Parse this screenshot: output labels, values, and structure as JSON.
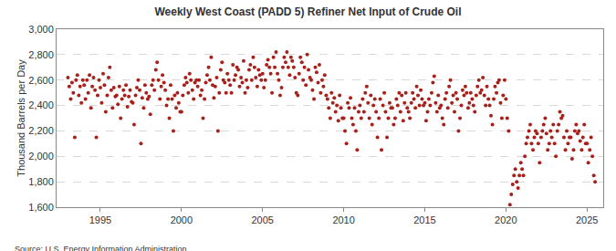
{
  "chart_data": {
    "type": "scatter",
    "title": "Weekly West Coast (PADD 5) Refiner Net Input of Crude Oil",
    "y_label": "Thousand Barrels per Day",
    "source": "Source: U.S. Energy Information Administration",
    "color": "#a8201a",
    "marker": "circle",
    "grid": true,
    "xlim": [
      1992.3,
      2026.0
    ],
    "xticks": [
      1995,
      2000,
      2005,
      2010,
      2015,
      2020,
      2025
    ],
    "ylim": [
      1600,
      3000
    ],
    "yticks": [
      {
        "value": 1600,
        "label": "1,600"
      },
      {
        "value": 1800,
        "label": "1,800"
      },
      {
        "value": 2000,
        "label": "2,000"
      },
      {
        "value": 2200,
        "label": "2,200"
      },
      {
        "value": 2400,
        "label": "2,400"
      },
      {
        "value": 2600,
        "label": "2,600"
      },
      {
        "value": 2800,
        "label": "2,800"
      },
      {
        "value": 3000,
        "label": "3,000"
      }
    ],
    "x": [
      1993.0,
      1993.08,
      1993.17,
      1993.25,
      1993.33,
      1993.42,
      1993.5,
      1993.58,
      1993.67,
      1993.75,
      1993.83,
      1993.92,
      1994.0,
      1994.08,
      1994.17,
      1994.25,
      1994.33,
      1994.42,
      1994.5,
      1994.58,
      1994.67,
      1994.75,
      1994.83,
      1994.92,
      1995.0,
      1995.08,
      1995.17,
      1995.25,
      1995.33,
      1995.42,
      1995.5,
      1995.58,
      1995.67,
      1995.75,
      1995.83,
      1995.92,
      1996.0,
      1996.08,
      1996.17,
      1996.25,
      1996.33,
      1996.42,
      1996.5,
      1996.58,
      1996.67,
      1996.75,
      1996.83,
      1996.92,
      1997.0,
      1997.08,
      1997.17,
      1997.25,
      1997.33,
      1997.42,
      1997.5,
      1997.58,
      1997.67,
      1997.75,
      1997.83,
      1997.92,
      1998.0,
      1998.08,
      1998.17,
      1998.25,
      1998.33,
      1998.42,
      1998.5,
      1998.58,
      1998.67,
      1998.75,
      1998.83,
      1998.92,
      1999.0,
      1999.08,
      1999.17,
      1999.25,
      1999.33,
      1999.42,
      1999.5,
      1999.58,
      1999.67,
      1999.75,
      1999.83,
      1999.92,
      2000.0,
      2000.08,
      2000.17,
      2000.25,
      2000.33,
      2000.42,
      2000.5,
      2000.58,
      2000.67,
      2000.75,
      2000.83,
      2000.92,
      2001.0,
      2001.08,
      2001.17,
      2001.25,
      2001.33,
      2001.42,
      2001.5,
      2001.58,
      2001.67,
      2001.75,
      2001.83,
      2001.92,
      2002.0,
      2002.08,
      2002.17,
      2002.25,
      2002.33,
      2002.42,
      2002.5,
      2002.58,
      2002.67,
      2002.75,
      2002.83,
      2002.92,
      2003.0,
      2003.08,
      2003.17,
      2003.25,
      2003.33,
      2003.42,
      2003.5,
      2003.58,
      2003.67,
      2003.75,
      2003.83,
      2003.92,
      2004.0,
      2004.08,
      2004.17,
      2004.25,
      2004.33,
      2004.42,
      2004.5,
      2004.58,
      2004.67,
      2004.75,
      2004.83,
      2004.92,
      2005.0,
      2005.08,
      2005.17,
      2005.25,
      2005.33,
      2005.42,
      2005.5,
      2005.58,
      2005.67,
      2005.75,
      2005.83,
      2005.92,
      2006.0,
      2006.08,
      2006.17,
      2006.25,
      2006.33,
      2006.42,
      2006.5,
      2006.58,
      2006.67,
      2006.75,
      2006.83,
      2006.92,
      2007.0,
      2007.08,
      2007.17,
      2007.25,
      2007.33,
      2007.42,
      2007.5,
      2007.58,
      2007.67,
      2007.75,
      2007.83,
      2007.92,
      2008.0,
      2008.08,
      2008.17,
      2008.25,
      2008.33,
      2008.42,
      2008.5,
      2008.58,
      2008.67,
      2008.75,
      2008.83,
      2008.92,
      2009.0,
      2009.08,
      2009.17,
      2009.25,
      2009.33,
      2009.42,
      2009.5,
      2009.58,
      2009.67,
      2009.75,
      2009.83,
      2009.92,
      2010.0,
      2010.08,
      2010.17,
      2010.25,
      2010.33,
      2010.42,
      2010.5,
      2010.58,
      2010.67,
      2010.75,
      2010.83,
      2010.92,
      2011.0,
      2011.08,
      2011.17,
      2011.25,
      2011.33,
      2011.42,
      2011.5,
      2011.58,
      2011.67,
      2011.75,
      2011.83,
      2011.92,
      2012.0,
      2012.08,
      2012.17,
      2012.25,
      2012.33,
      2012.42,
      2012.5,
      2012.58,
      2012.67,
      2012.75,
      2012.83,
      2012.92,
      2013.0,
      2013.08,
      2013.17,
      2013.25,
      2013.33,
      2013.42,
      2013.5,
      2013.58,
      2013.67,
      2013.75,
      2013.83,
      2013.92,
      2014.0,
      2014.08,
      2014.17,
      2014.25,
      2014.33,
      2014.42,
      2014.5,
      2014.58,
      2014.67,
      2014.75,
      2014.83,
      2014.92,
      2015.0,
      2015.08,
      2015.17,
      2015.25,
      2015.33,
      2015.42,
      2015.5,
      2015.58,
      2015.67,
      2015.75,
      2015.83,
      2015.92,
      2016.0,
      2016.08,
      2016.17,
      2016.25,
      2016.33,
      2016.42,
      2016.5,
      2016.58,
      2016.67,
      2016.75,
      2016.83,
      2016.92,
      2017.0,
      2017.08,
      2017.17,
      2017.25,
      2017.33,
      2017.42,
      2017.5,
      2017.58,
      2017.67,
      2017.75,
      2017.83,
      2017.92,
      2018.0,
      2018.08,
      2018.17,
      2018.25,
      2018.33,
      2018.42,
      2018.5,
      2018.58,
      2018.67,
      2018.75,
      2018.83,
      2018.92,
      2019.0,
      2019.08,
      2019.17,
      2019.25,
      2019.33,
      2019.42,
      2019.5,
      2019.58,
      2019.67,
      2019.75,
      2019.83,
      2019.92,
      2020.0,
      2020.08,
      2020.17,
      2020.25,
      2020.33,
      2020.42,
      2020.5,
      2020.58,
      2020.67,
      2020.75,
      2020.83,
      2020.92,
      2021.0,
      2021.08,
      2021.17,
      2021.25,
      2021.33,
      2021.42,
      2021.5,
      2021.58,
      2021.67,
      2021.75,
      2021.83,
      2021.92,
      2022.0,
      2022.08,
      2022.17,
      2022.25,
      2022.33,
      2022.42,
      2022.5,
      2022.58,
      2022.67,
      2022.75,
      2022.83,
      2022.92,
      2023.0,
      2023.08,
      2023.17,
      2023.25,
      2023.33,
      2023.42,
      2023.5,
      2023.58,
      2023.67,
      2023.75,
      2023.83,
      2023.92,
      2024.0,
      2024.08,
      2024.17,
      2024.25,
      2024.33,
      2024.42,
      2024.5,
      2024.58,
      2024.67,
      2024.75,
      2024.83,
      2024.92,
      2025.0,
      2025.08,
      2025.17,
      2025.25,
      2025.33,
      2025.42,
      2025.5
    ],
    "values": [
      2620,
      2550,
      2450,
      2580,
      2500,
      2150,
      2600,
      2640,
      2480,
      2550,
      2420,
      2600,
      2560,
      2450,
      2600,
      2500,
      2640,
      2380,
      2550,
      2620,
      2520,
      2150,
      2480,
      2600,
      2540,
      2420,
      2650,
      2560,
      2350,
      2480,
      2620,
      2700,
      2520,
      2380,
      2540,
      2470,
      2480,
      2410,
      2550,
      2300,
      2450,
      2520,
      2480,
      2560,
      2390,
      2470,
      2520,
      2430,
      2420,
      2250,
      2480,
      2540,
      2600,
      2520,
      2100,
      2460,
      2380,
      2560,
      2500,
      2450,
      2470,
      2330,
      2560,
      2600,
      2520,
      2680,
      2740,
      2600,
      2450,
      2550,
      2640,
      2580,
      2520,
      2400,
      2450,
      2300,
      2560,
      2450,
      2200,
      2480,
      2380,
      2500,
      2420,
      2350,
      2350,
      2480,
      2560,
      2620,
      2580,
      2500,
      2650,
      2600,
      2520,
      2450,
      2580,
      2600,
      2550,
      2600,
      2480,
      2520,
      2300,
      2450,
      2580,
      2640,
      2700,
      2600,
      2780,
      2560,
      2460,
      2550,
      2620,
      2200,
      2500,
      2680,
      2740,
      2600,
      2580,
      2500,
      2650,
      2600,
      2560,
      2500,
      2720,
      2600,
      2640,
      2700,
      2680,
      2550,
      2620,
      2580,
      2750,
      2500,
      2600,
      2540,
      2680,
      2720,
      2600,
      2780,
      2700,
      2620,
      2550,
      2680,
      2640,
      2600,
      2650,
      2540,
      2600,
      2720,
      2760,
      2700,
      2650,
      2500,
      2780,
      2700,
      2820,
      2650,
      2600,
      2480,
      2540,
      2700,
      2780,
      2740,
      2820,
      2700,
      2640,
      2780,
      2750,
      2700,
      2620,
      2500,
      2480,
      2650,
      2780,
      2740,
      2600,
      2700,
      2560,
      2800,
      2680,
      2620,
      2600,
      2520,
      2450,
      2700,
      2660,
      2580,
      2720,
      2500,
      2600,
      2550,
      2640,
      2480,
      2450,
      2380,
      2300,
      2500,
      2420,
      2460,
      2350,
      2400,
      2280,
      2480,
      2380,
      2300,
      2300,
      2200,
      2100,
      2420,
      2380,
      2460,
      2300,
      2250,
      2380,
      2200,
      2050,
      2350,
      2400,
      2300,
      2450,
      2350,
      2500,
      2550,
      2420,
      2300,
      2480,
      2250,
      2400,
      2450,
      2350,
      2150,
      2300,
      2450,
      2050,
      2400,
      2500,
      2350,
      2150,
      2300,
      2420,
      2380,
      2380,
      2250,
      2300,
      2450,
      2400,
      2500,
      2350,
      2480,
      2280,
      2420,
      2500,
      2380,
      2350,
      2300,
      2420,
      2500,
      2450,
      2380,
      2550,
      2480,
      2400,
      2520,
      2450,
      2400,
      2420,
      2280,
      2350,
      2450,
      2400,
      2500,
      2580,
      2630,
      2420,
      2350,
      2480,
      2380,
      2400,
      2300,
      2250,
      2450,
      2500,
      2380,
      2550,
      2600,
      2420,
      2480,
      2350,
      2500,
      2450,
      2200,
      2300,
      2400,
      2520,
      2480,
      2550,
      2500,
      2380,
      2420,
      2500,
      2450,
      2400,
      2350,
      2480,
      2550,
      2600,
      2500,
      2520,
      2620,
      2480,
      2400,
      2550,
      2450,
      2400,
      2320,
      2250,
      2450,
      2550,
      2500,
      2580,
      2600,
      2420,
      2300,
      2480,
      2600,
      2450,
      2300,
      2200,
      1620,
      1700,
      1780,
      1850,
      1900,
      1800,
      1750,
      1850,
      1950,
      1900,
      1850,
      2000,
      2100,
      2150,
      2200,
      2250,
      2100,
      2050,
      2150,
      2200,
      2180,
      2100,
      1950,
      2150,
      2200,
      2250,
      2300,
      2180,
      2050,
      2100,
      2200,
      2150,
      2250,
      2100,
      2000,
      2200,
      2250,
      2350,
      2300,
      2320,
      2150,
      2050,
      2200,
      2100,
      2150,
      2150,
      1980,
      2050,
      2200,
      2250,
      2180,
      2200,
      2120,
      2050,
      2150,
      2250,
      2100,
      2100,
      1950,
      2050,
      2150,
      2000,
      1850,
      1800
    ]
  }
}
